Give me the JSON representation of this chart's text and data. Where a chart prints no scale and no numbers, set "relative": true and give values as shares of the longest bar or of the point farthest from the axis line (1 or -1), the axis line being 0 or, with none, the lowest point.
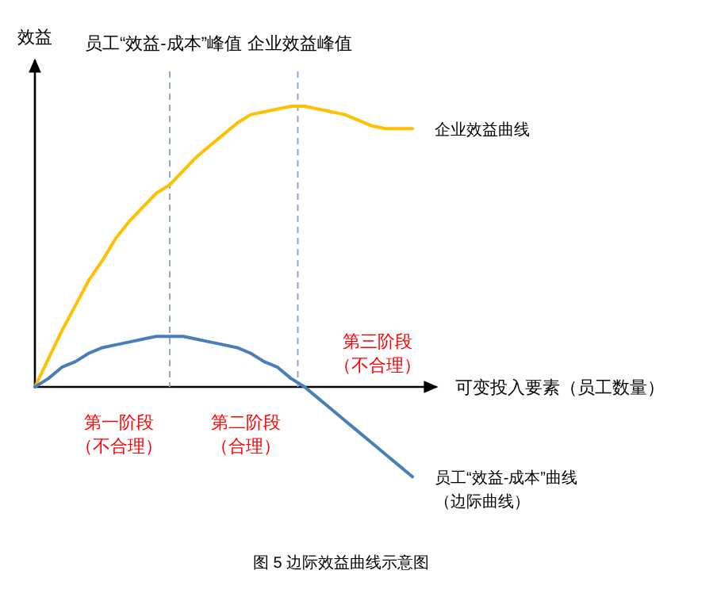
{
  "chart_data": {
    "type": "line",
    "title": "图 5 边际效益曲线示意图",
    "xlabel": "可变投入要素（员工数量）",
    "ylabel": "效益",
    "relative": true,
    "categories": [
      null,
      null,
      null,
      null,
      null,
      null,
      null,
      null,
      null,
      null,
      null,
      null,
      null,
      null,
      null,
      null,
      null,
      null,
      null,
      null,
      null,
      null,
      null,
      null,
      null,
      null,
      null,
      null,
      null
    ],
    "series": [
      {
        "name": "企业效益曲线",
        "color": "#ffc000",
        "values": [
          0,
          0.1,
          0.2,
          0.29,
          0.38,
          0.45,
          0.53,
          0.59,
          0.64,
          0.69,
          0.72,
          0.77,
          0.82,
          0.86,
          0.9,
          0.94,
          0.97,
          0.98,
          0.99,
          1,
          1,
          0.99,
          0.98,
          0.97,
          0.95,
          0.93,
          0.92,
          0.92,
          0.92
        ]
      },
      {
        "name": "员工“效益-成本”曲线（边际曲线）",
        "color": "#4a7ebb",
        "values": [
          0,
          0.03,
          0.07,
          0.09,
          0.12,
          0.14,
          0.15,
          0.16,
          0.17,
          0.18,
          0.18,
          0.18,
          0.17,
          0.16,
          0.15,
          0.14,
          0.12,
          0.09,
          0.07,
          0.03,
          0,
          -0.04,
          -0.08,
          -0.12,
          -0.16,
          -0.2,
          -0.24,
          -0.28,
          -0.32
        ]
      }
    ],
    "annotations": [
      "员工“效益-成本”峰值",
      "企业效益峰值",
      "第一阶段",
      "（不合理）",
      "第二阶段",
      "（合理）",
      "第三阶段",
      "（不合理）"
    ]
  }
}
